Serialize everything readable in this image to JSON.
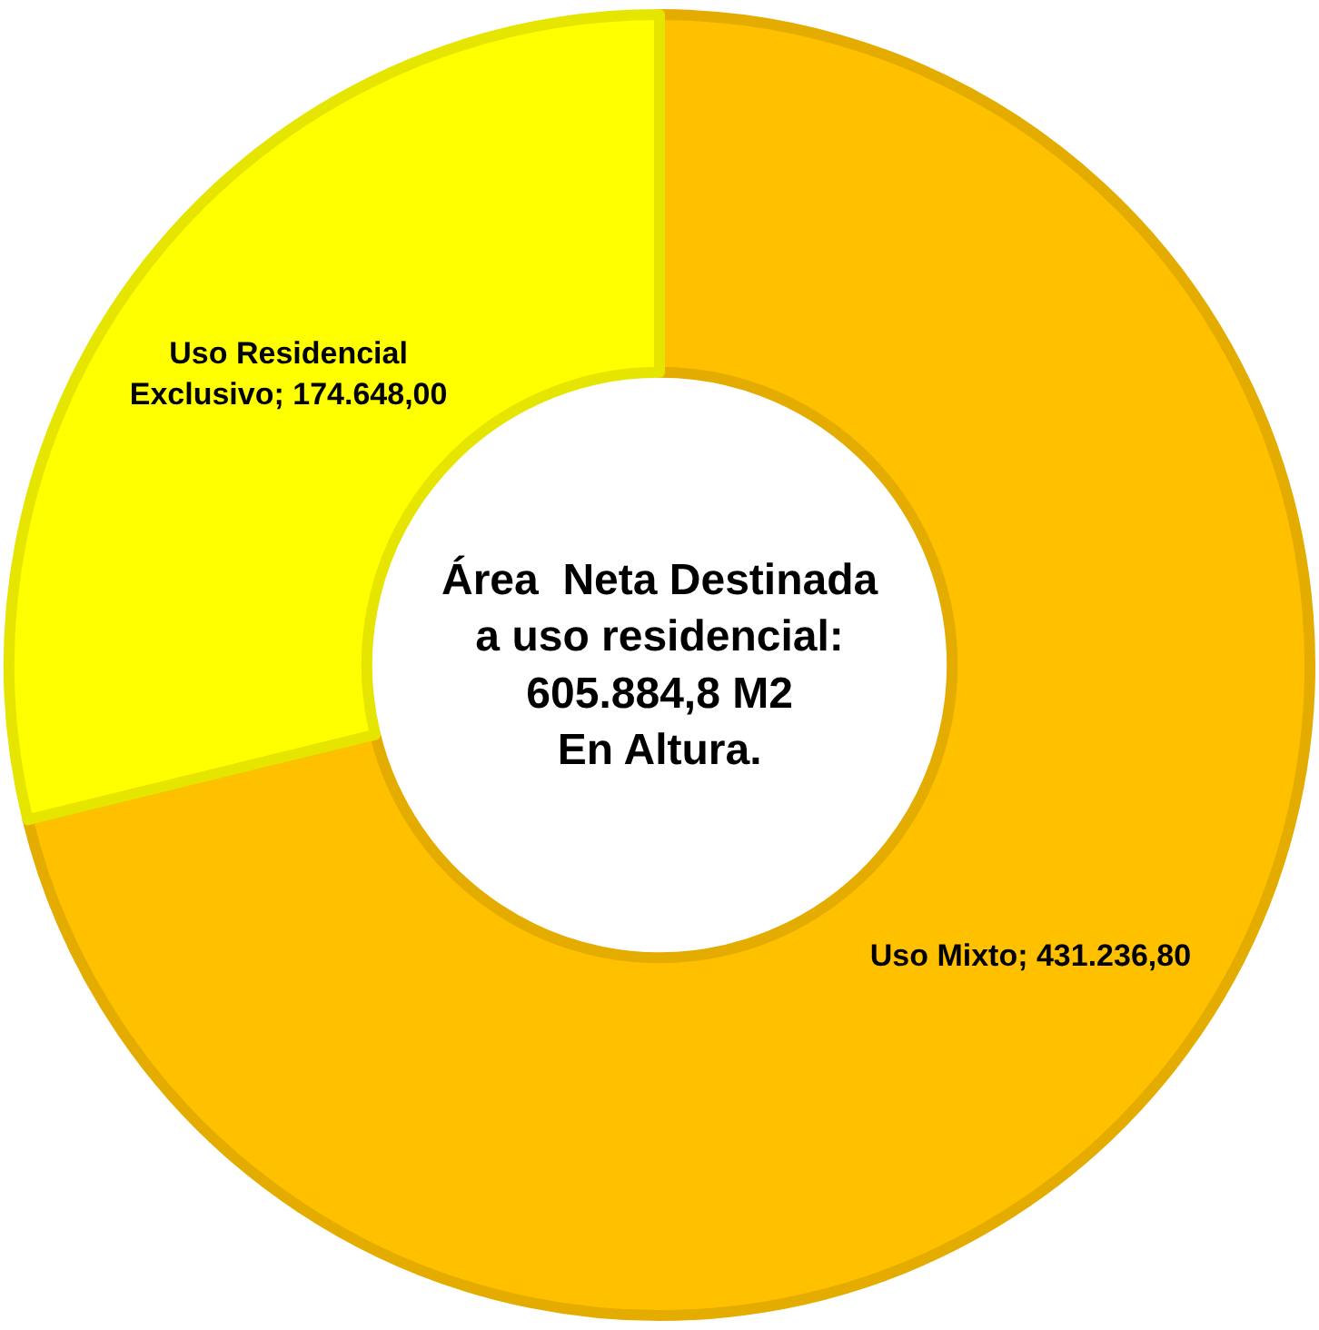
{
  "chart_data": {
    "type": "donut",
    "categories": [
      "Uso Mixto",
      "Uso Residencial Exclusivo"
    ],
    "values": [
      431236.8,
      174648.0
    ],
    "colors": [
      "#ffc000",
      "#ffff00"
    ],
    "value_labels": [
      "431.236,80",
      "174.648,00"
    ],
    "annotations": [
      "Área  Neta Destinada\na uso residencial:\n605.884,8 M2\nEn Altura."
    ],
    "legend": false
  }
}
